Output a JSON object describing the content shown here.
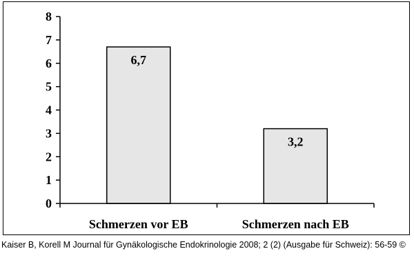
{
  "chart_data": {
    "type": "bar",
    "categories": [
      "Schmerzen vor EB",
      "Schmerzen nach EB"
    ],
    "values": [
      6.7,
      3.2
    ],
    "data_labels": [
      "6,7",
      "3,2"
    ],
    "ylim": [
      0,
      8
    ],
    "yticks": [
      "0",
      "1",
      "2",
      "3",
      "4",
      "5",
      "6",
      "7",
      "8"
    ],
    "title": "",
    "xlabel": "",
    "ylabel": "",
    "grid": false,
    "bar_fill": "#e6e6e6",
    "bar_stroke": "#000000"
  },
  "citation": "Kaiser B, Korell M Journal für Gynäkologische Endokrinologie 2008; 2 (2) (Ausgabe für Schweiz): 56-59 ©"
}
